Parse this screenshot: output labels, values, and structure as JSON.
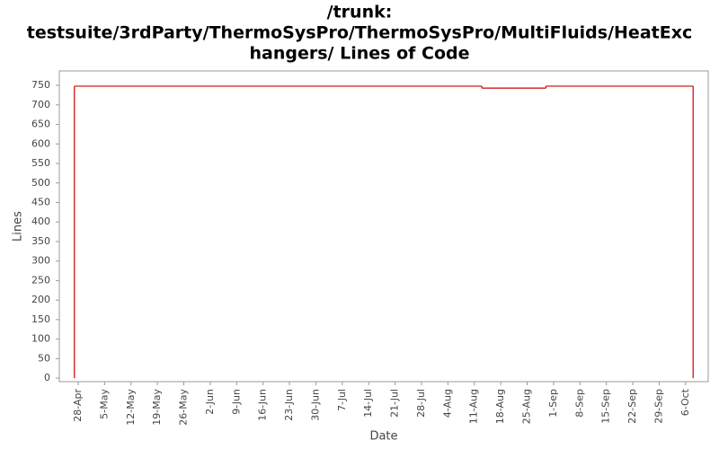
{
  "chart_data": {
    "type": "step",
    "title": [
      "/trunk:",
      "testsuite/3rdParty/ThermoSysPro/ThermoSysPro/MultiFluids/HeatExc",
      "hangers/ Lines of Code"
    ],
    "x_label": "Date",
    "y_label": "Lines",
    "series": [
      {
        "name": "Lines",
        "color": "#cc0000",
        "x": [
          "27-Apr",
          "13-Aug",
          "30-Aug",
          "8-Oct"
        ],
        "values": [
          748,
          743,
          748,
          748
        ]
      }
    ],
    "xlim": [
      "23-Apr",
      "12-Oct"
    ],
    "xticks": [
      "28-Apr",
      "5-May",
      "12-May",
      "19-May",
      "26-May",
      "2-Jun",
      "9-Jun",
      "16-Jun",
      "23-Jun",
      "30-Jun",
      "7-Jul",
      "14-Jul",
      "21-Jul",
      "28-Jul",
      "4-Aug",
      "11-Aug",
      "18-Aug",
      "25-Aug",
      "1-Sep",
      "8-Sep",
      "15-Sep",
      "22-Sep",
      "29-Sep",
      "6-Oct"
    ],
    "ylim": [
      -9,
      787
    ],
    "yticks": [
      0,
      50,
      100,
      150,
      200,
      250,
      300,
      350,
      400,
      450,
      500,
      550,
      600,
      650,
      700,
      750
    ],
    "grid": false
  }
}
